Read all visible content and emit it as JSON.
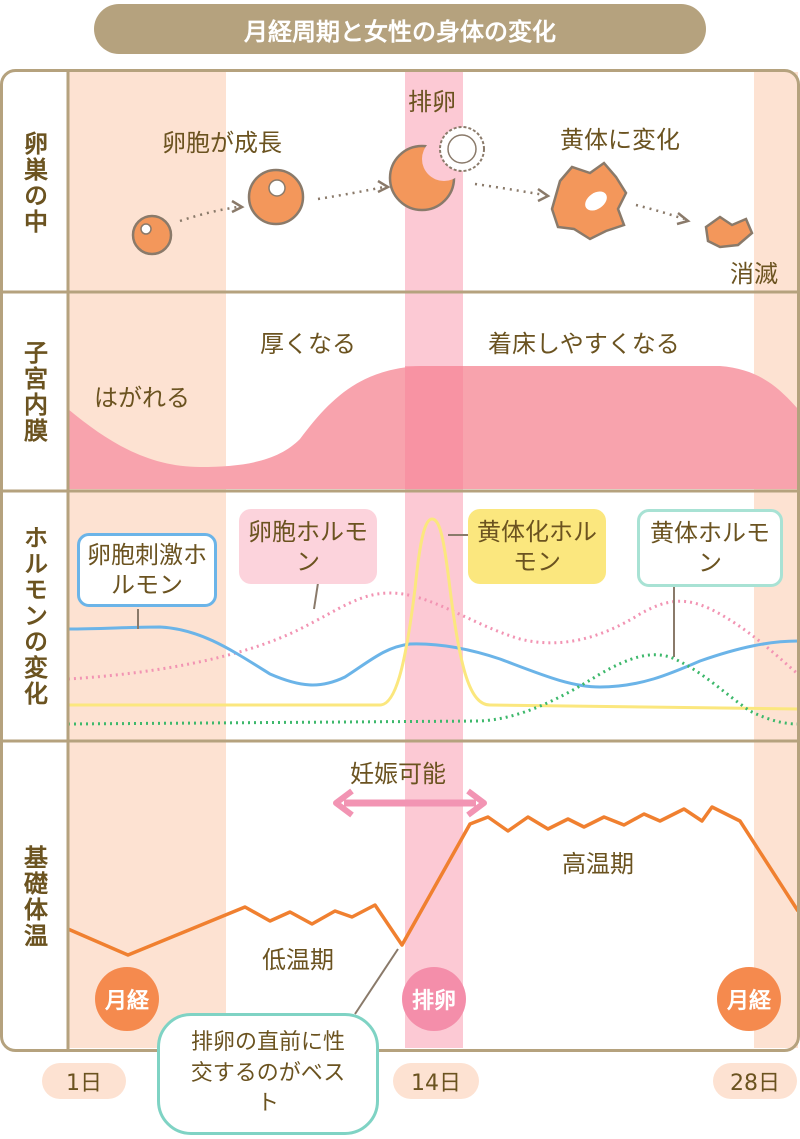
{
  "title": "月経周期と女性の身体の変化",
  "sections": {
    "ovary": "卵巣の中",
    "uterus": "子宮内膜",
    "hormone": "ホルモンの変化",
    "temperature": "基礎体温"
  },
  "ovary": {
    "ovulation_label": "排卵",
    "follicle_growth": "卵胞が成長",
    "corpus_luteum": "黄体に変化",
    "disappear": "消滅"
  },
  "uterus": {
    "shedding": "はがれる",
    "thickening": "厚くなる",
    "implantation_ready": "着床しやすくなる"
  },
  "hormones": {
    "fsh": "卵胞刺激ホルモン",
    "estrogen": "卵胞ホルモン",
    "lh": "黄体化ホルモン",
    "progesterone": "黄体ホルモン"
  },
  "temperature": {
    "fertile": "妊娠可能",
    "high_phase": "高温期",
    "low_phase": "低温期"
  },
  "markers": {
    "period_left": "月経",
    "ovulation": "排卵",
    "period_right": "月経"
  },
  "advice": "排卵の直前に性交するのがベスト",
  "days": {
    "day1": "1日",
    "day14": "14日",
    "day28": "28日"
  },
  "colors": {
    "menstruation_band": "#fde2d2",
    "ovulation_band": "#fcc9d4",
    "endometrium": "#f8a3ad",
    "fsh_line": "#6bb4e8",
    "estrogen_line": "#f294b3",
    "lh_line": "#fbe77e",
    "progesterone_line": "#3db86b",
    "temperature_line": "#f08030",
    "frame": "#b5a27e"
  }
}
